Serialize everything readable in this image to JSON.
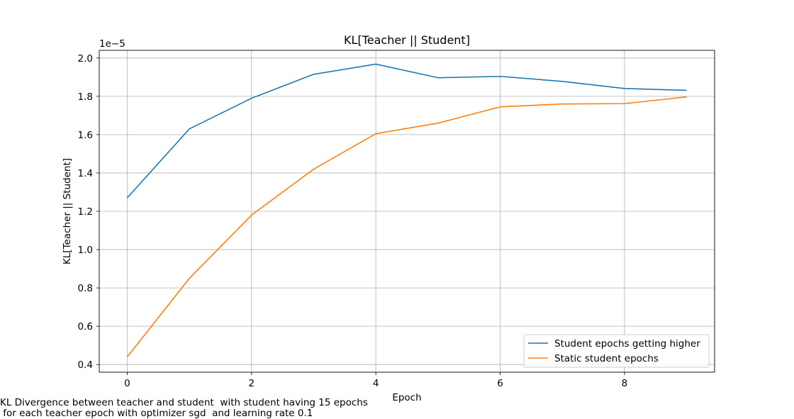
{
  "chart_data": {
    "type": "line",
    "title": "KL[Teacher || Student]",
    "xlabel": "Epoch",
    "ylabel": "KL[Teacher || Student]",
    "y_offset_label": "1e−5",
    "x": [
      0,
      1,
      2,
      3,
      4,
      5,
      6,
      7,
      8,
      9
    ],
    "xlim": [
      -0.45,
      9.45
    ],
    "ylim": [
      0.36,
      2.04
    ],
    "xticks": [
      0,
      2,
      4,
      6,
      8
    ],
    "xtick_labels": [
      "0",
      "2",
      "4",
      "6",
      "8"
    ],
    "yticks": [
      0.4,
      0.6,
      0.8,
      1.0,
      1.2,
      1.4,
      1.6,
      1.8,
      2.0
    ],
    "ytick_labels": [
      "0.4",
      "0.6",
      "0.8",
      "1.0",
      "1.2",
      "1.4",
      "1.6",
      "1.8",
      "2.0"
    ],
    "grid": true,
    "legend_position": "lower-right",
    "series": [
      {
        "name": "Student epochs getting higher",
        "color": "#1f77b4",
        "values": [
          1.27,
          1.63,
          1.79,
          1.915,
          1.968,
          1.897,
          1.904,
          1.878,
          1.841,
          1.831
        ]
      },
      {
        "name": "Static student epochs",
        "color": "#ff7f0e",
        "values": [
          0.44,
          0.85,
          1.18,
          1.42,
          1.605,
          1.66,
          1.745,
          1.76,
          1.762,
          1.797
        ]
      }
    ]
  },
  "caption": {
    "line1": "KL Divergence between teacher and student  with student having 15 epochs",
    "line2": " for each teacher epoch with optimizer sgd  and learning rate 0.1"
  }
}
